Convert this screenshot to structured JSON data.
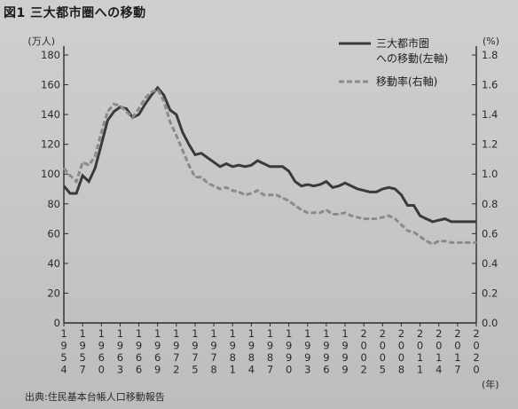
{
  "figure": {
    "title": "図1 三大都市圏への移動",
    "source": "出典:住民基本台帳人口移動報告"
  },
  "chart_data": {
    "type": "line",
    "title": "図1 三大都市圏への移動",
    "y_left_unit": "(万人)",
    "y_right_unit": "(%)",
    "x_unit": "(年)",
    "ylim_left": [
      0,
      180
    ],
    "ylim_right": [
      0.0,
      1.8
    ],
    "yticks_left": [
      "0",
      "20",
      "40",
      "60",
      "80",
      "100",
      "120",
      "140",
      "160",
      "180"
    ],
    "yticks_right": [
      "0.0",
      "0.2",
      "0.4",
      "0.6",
      "0.8",
      "1.0",
      "1.2",
      "1.4",
      "1.6",
      "1.8"
    ],
    "x_tick_labels": [
      "1954",
      "1957",
      "1960",
      "1963",
      "1966",
      "1969",
      "1972",
      "1975",
      "1978",
      "1981",
      "1984",
      "1987",
      "1990",
      "1993",
      "1996",
      "1999",
      "2002",
      "2005",
      "2008",
      "2011",
      "2014",
      "2017",
      "2020"
    ],
    "grid": false,
    "legend_position": "top-right",
    "series": [
      {
        "name": "三大都市圏への移動(左軸)",
        "axis": "left",
        "style": "solid",
        "x": [
          1954,
          1955,
          1956,
          1957,
          1958,
          1959,
          1960,
          1961,
          1962,
          1963,
          1964,
          1965,
          1966,
          1967,
          1968,
          1969,
          1970,
          1971,
          1972,
          1973,
          1974,
          1975,
          1976,
          1977,
          1978,
          1979,
          1980,
          1981,
          1982,
          1983,
          1984,
          1985,
          1986,
          1987,
          1988,
          1989,
          1990,
          1991,
          1992,
          1993,
          1994,
          1995,
          1996,
          1997,
          1998,
          1999,
          2000,
          2001,
          2002,
          2003,
          2004,
          2005,
          2006,
          2007,
          2008,
          2009,
          2010,
          2011,
          2012,
          2013,
          2014,
          2015,
          2016,
          2017,
          2018,
          2019,
          2020
        ],
        "values": [
          92,
          87,
          87,
          99,
          95,
          104,
          120,
          136,
          142,
          145,
          144,
          138,
          140,
          147,
          153,
          158,
          153,
          143,
          140,
          128,
          120,
          113,
          114,
          111,
          108,
          105,
          107,
          105,
          106,
          105,
          106,
          109,
          107,
          105,
          105,
          105,
          102,
          95,
          92,
          93,
          92,
          93,
          95,
          91,
          92,
          94,
          92,
          90,
          89,
          88,
          88,
          90,
          91,
          90,
          86,
          79,
          79,
          72,
          70,
          68,
          69,
          70,
          68,
          68,
          68,
          68,
          68
        ]
      },
      {
        "name": "移動率(右軸)",
        "axis": "right",
        "style": "dashed",
        "x": [
          1954,
          1955,
          1956,
          1957,
          1958,
          1959,
          1960,
          1961,
          1962,
          1963,
          1964,
          1965,
          1966,
          1967,
          1968,
          1969,
          1970,
          1971,
          1972,
          1973,
          1974,
          1975,
          1976,
          1977,
          1978,
          1979,
          1980,
          1981,
          1982,
          1983,
          1984,
          1985,
          1986,
          1987,
          1988,
          1989,
          1990,
          1991,
          1992,
          1993,
          1994,
          1995,
          1996,
          1997,
          1998,
          1999,
          2000,
          2001,
          2002,
          2003,
          2004,
          2005,
          2006,
          2007,
          2008,
          2009,
          2010,
          2011,
          2012,
          2013,
          2014,
          2015,
          2016,
          2017,
          2018,
          2019,
          2020
        ],
        "values": [
          1.04,
          0.99,
          0.95,
          1.08,
          1.06,
          1.12,
          1.28,
          1.42,
          1.47,
          1.46,
          1.42,
          1.38,
          1.44,
          1.51,
          1.55,
          1.57,
          1.49,
          1.35,
          1.26,
          1.16,
          1.06,
          0.98,
          0.98,
          0.94,
          0.92,
          0.9,
          0.91,
          0.89,
          0.88,
          0.86,
          0.87,
          0.89,
          0.86,
          0.86,
          0.86,
          0.84,
          0.82,
          0.79,
          0.76,
          0.74,
          0.74,
          0.74,
          0.76,
          0.73,
          0.73,
          0.74,
          0.72,
          0.71,
          0.7,
          0.7,
          0.7,
          0.71,
          0.72,
          0.7,
          0.66,
          0.62,
          0.61,
          0.58,
          0.55,
          0.53,
          0.55,
          0.55,
          0.54,
          0.54,
          0.54,
          0.54,
          0.54
        ]
      }
    ]
  },
  "colors": {
    "solid_line": "#3a3a3a",
    "dashed_line": "#8a8a8a",
    "axis": "#2b2b2b"
  }
}
